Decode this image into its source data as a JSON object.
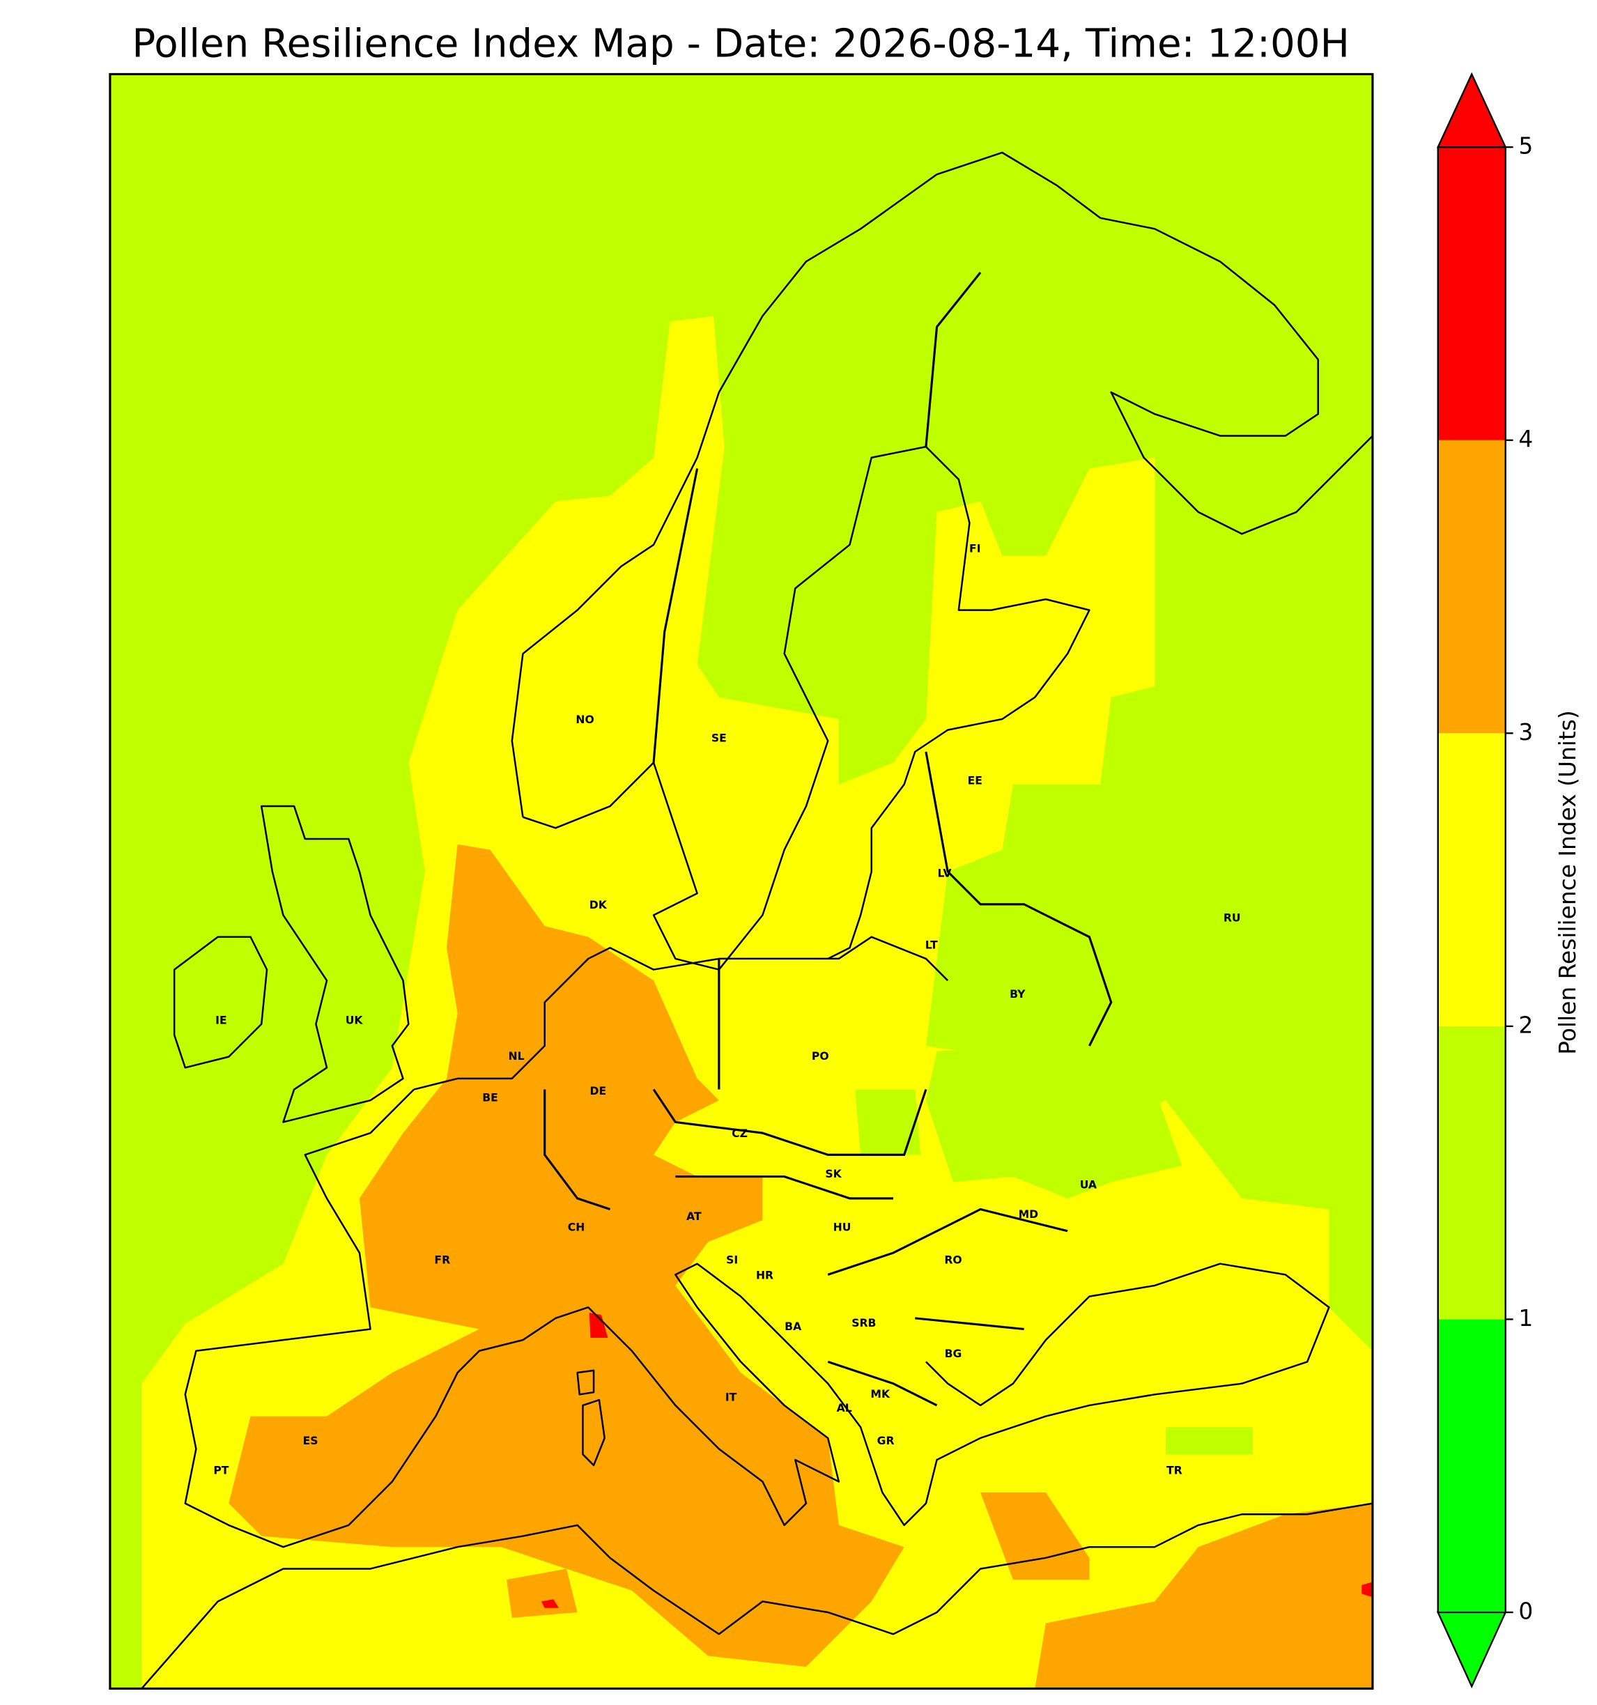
{
  "title": "Pollen Resilience Index Map - Date: 2026-08-14, Time: 12:00H",
  "map": {
    "country_labels": [
      "NO",
      "SE",
      "FI",
      "EE",
      "LV",
      "LT",
      "RU",
      "BY",
      "DK",
      "IE",
      "UK",
      "NL",
      "BE",
      "DE",
      "PO",
      "CZ",
      "SK",
      "UA",
      "AT",
      "MD",
      "CH",
      "HU",
      "FR",
      "RO",
      "SI",
      "HR",
      "BA",
      "SRB",
      "BG",
      "IT",
      "MK",
      "AL",
      "ES",
      "GR",
      "PT",
      "TR"
    ]
  },
  "colorbar": {
    "label": "Pollen Resilience Index (Units)",
    "ticks": [
      0,
      1,
      2,
      3,
      4,
      5
    ],
    "colors": [
      "#00ff00",
      "#bfff00",
      "#ffff00",
      "#ffa500",
      "#ff0000"
    ],
    "under_color": "#00ff00",
    "over_color": "#ff0000"
  }
}
